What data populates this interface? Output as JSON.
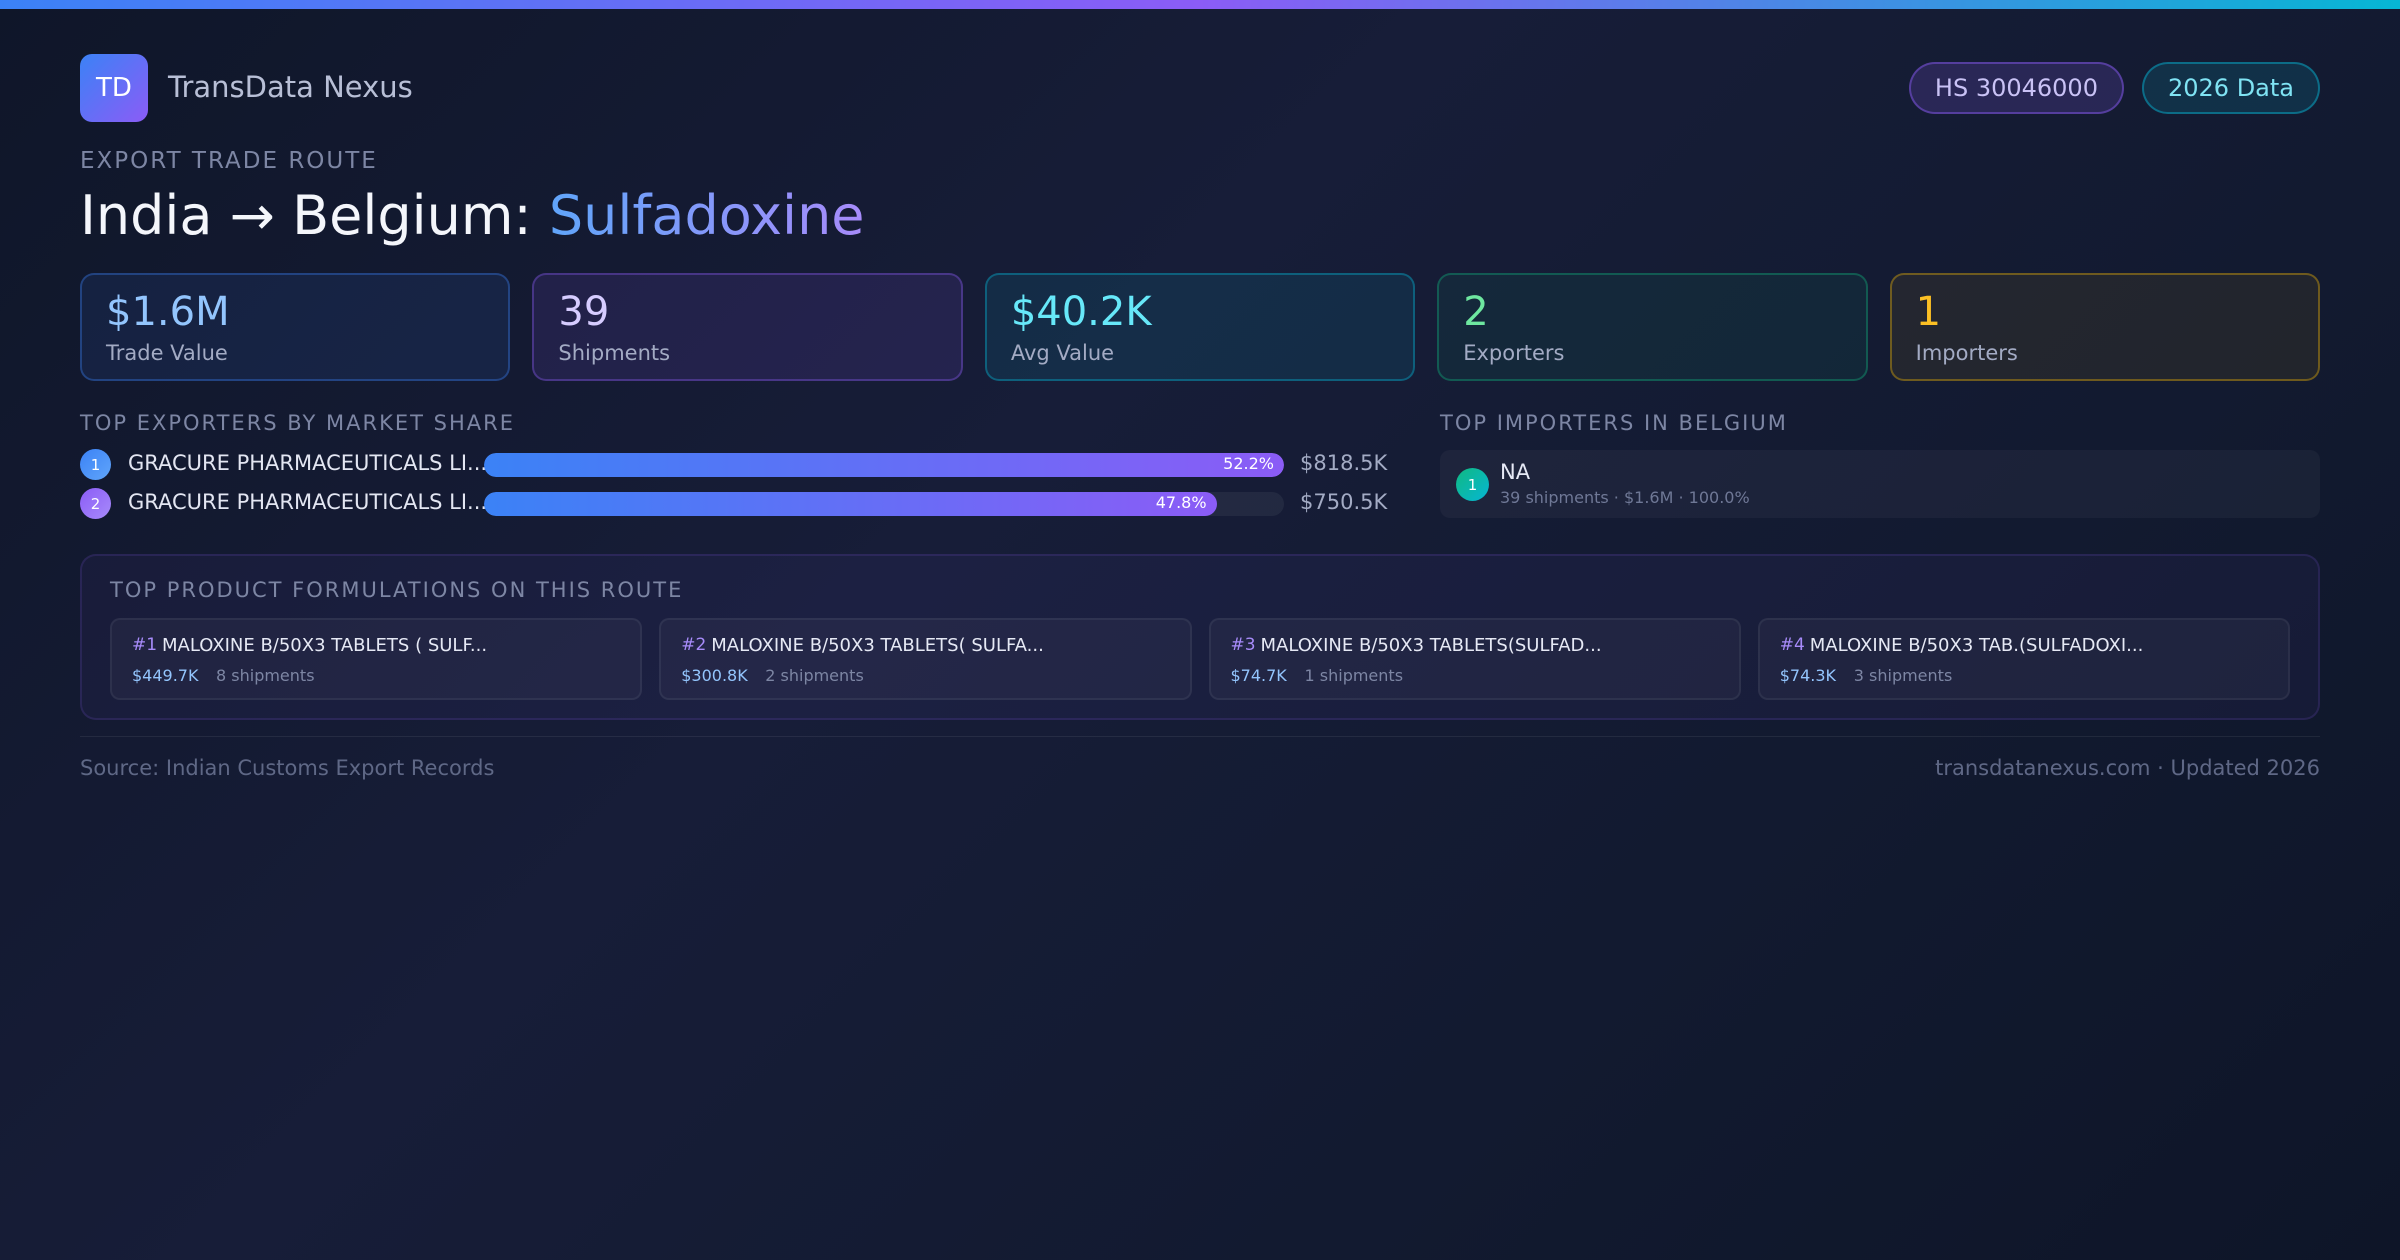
{
  "brand": {
    "logo_text": "TD",
    "name": "TransData Nexus"
  },
  "badges": {
    "hs_code": "HS 30046000",
    "year": "2026 Data"
  },
  "eyebrow": "EXPORT TRADE ROUTE",
  "title": {
    "route": "India → Belgium: ",
    "product": "Sulfadoxine"
  },
  "stats": [
    {
      "value": "$1.6M",
      "label": "Trade Value",
      "color": "#93c5fd"
    },
    {
      "value": "39",
      "label": "Shipments",
      "color": "#d6ccff"
    },
    {
      "value": "$40.2K",
      "label": "Avg Value",
      "color": "#67e8f9"
    },
    {
      "value": "2",
      "label": "Exporters",
      "color": "#6ee7a0"
    },
    {
      "value": "1",
      "label": "Importers",
      "color": "#fbbf24"
    }
  ],
  "exporters": {
    "title": "TOP EXPORTERS BY MARKET SHARE",
    "items": [
      {
        "rank": "1",
        "name": "GRACURE PHARMACEUTICALS LI...",
        "share": 52.2,
        "share_label": "52.2%",
        "value": "$818.5K"
      },
      {
        "rank": "2",
        "name": "GRACURE PHARMACEUTICALS LI...",
        "share": 47.8,
        "share_label": "47.8%",
        "value": "$750.5K"
      }
    ]
  },
  "importers": {
    "title": "TOP IMPORTERS IN BELGIUM",
    "items": [
      {
        "rank": "1",
        "name": "NA",
        "meta": "39 shipments · $1.6M · 100.0%"
      }
    ]
  },
  "formulations": {
    "title": "TOP PRODUCT FORMULATIONS ON THIS ROUTE",
    "items": [
      {
        "num": "#1",
        "name": "MALOXINE B/50X3 TABLETS ( SULF...",
        "value": "$449.7K",
        "shipments": "8 shipments"
      },
      {
        "num": "#2",
        "name": "MALOXINE B/50X3 TABLETS( SULFA...",
        "value": "$300.8K",
        "shipments": "2 shipments"
      },
      {
        "num": "#3",
        "name": "MALOXINE B/50X3 TABLETS(SULFAD...",
        "value": "$74.7K",
        "shipments": "1 shipments"
      },
      {
        "num": "#4",
        "name": "MALOXINE B/50X3 TAB.(SULFADOXI...",
        "value": "$74.3K",
        "shipments": "3 shipments"
      }
    ]
  },
  "footer": {
    "source": "Source: Indian Customs Export Records",
    "site": "transdatanexus.com · Updated 2026"
  },
  "colors": {
    "accent_blue": "#3b82f6",
    "accent_purple": "#8b5cf6",
    "accent_cyan": "#06b6d4",
    "background": "#131a31"
  }
}
